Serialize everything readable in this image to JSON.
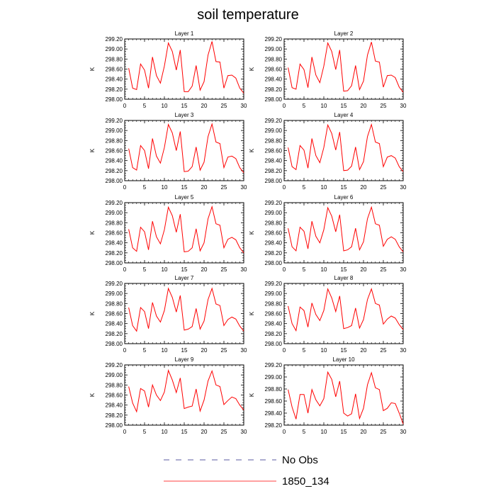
{
  "figure": {
    "title": "soil temperature",
    "legend": [
      {
        "label": "No Obs",
        "color": "#5a5aa0",
        "dash": true
      },
      {
        "label": "1850_134",
        "color": "#ff0000",
        "dash": false
      }
    ]
  },
  "chart_data": [
    {
      "type": "line",
      "title": "Layer 1",
      "xlabel": "",
      "ylabel": "K",
      "xlim": [
        0,
        30
      ],
      "ylim": [
        298.0,
        299.2
      ],
      "x_ticks": [
        0,
        5,
        10,
        15,
        20,
        25,
        30
      ],
      "y_ticks": [
        "299.20",
        "299.00",
        "298.80",
        "298.60",
        "298.40",
        "298.20",
        "298.00"
      ],
      "series": [
        {
          "name": "1850_134",
          "color": "#ff0000",
          "x": [
            1,
            2,
            3,
            4,
            5,
            6,
            7,
            8,
            9,
            10,
            11,
            12,
            13,
            14,
            15,
            16,
            17,
            18,
            19,
            20,
            21,
            22,
            23,
            24,
            25,
            26,
            27,
            28,
            29,
            30
          ],
          "values": [
            298.62,
            298.22,
            298.19,
            298.7,
            298.58,
            298.22,
            298.84,
            298.47,
            298.32,
            298.66,
            299.12,
            298.95,
            298.58,
            298.98,
            298.15,
            298.15,
            298.26,
            298.67,
            298.18,
            298.35,
            298.88,
            299.15,
            298.75,
            298.74,
            298.22,
            298.47,
            298.48,
            298.42,
            298.22,
            298.12
          ]
        }
      ]
    },
    {
      "type": "line",
      "title": "Layer 2",
      "xlabel": "",
      "ylabel": "K",
      "xlim": [
        0,
        30
      ],
      "ylim": [
        298.0,
        299.2
      ],
      "x_ticks": [
        0,
        5,
        10,
        15,
        20,
        25,
        30
      ],
      "y_ticks": [
        "299.20",
        "299.00",
        "298.80",
        "298.60",
        "298.40",
        "298.20",
        "298.00"
      ],
      "series": [
        {
          "name": "1850_134",
          "color": "#ff0000",
          "x": [
            1,
            2,
            3,
            4,
            5,
            6,
            7,
            8,
            9,
            10,
            11,
            12,
            13,
            14,
            15,
            16,
            17,
            18,
            19,
            20,
            21,
            22,
            23,
            24,
            25,
            26,
            27,
            28,
            29,
            30
          ],
          "values": [
            298.63,
            298.23,
            298.2,
            298.7,
            298.59,
            298.23,
            298.84,
            298.48,
            298.33,
            298.66,
            299.12,
            298.95,
            298.59,
            298.98,
            298.16,
            298.17,
            298.27,
            298.67,
            298.19,
            298.36,
            298.88,
            299.14,
            298.76,
            298.74,
            298.24,
            298.47,
            298.48,
            298.43,
            298.24,
            298.14
          ]
        }
      ]
    },
    {
      "type": "line",
      "title": "Layer 3",
      "xlabel": "",
      "ylabel": "K",
      "xlim": [
        0,
        30
      ],
      "ylim": [
        298.0,
        299.2
      ],
      "x_ticks": [
        0,
        5,
        10,
        15,
        20,
        25,
        30
      ],
      "y_ticks": [
        "299.20",
        "299.00",
        "298.80",
        "298.60",
        "298.40",
        "298.20",
        "298.00"
      ],
      "series": [
        {
          "name": "1850_134",
          "color": "#ff0000",
          "x": [
            1,
            2,
            3,
            4,
            5,
            6,
            7,
            8,
            9,
            10,
            11,
            12,
            13,
            14,
            15,
            16,
            17,
            18,
            19,
            20,
            21,
            22,
            23,
            24,
            25,
            26,
            27,
            28,
            29,
            30
          ],
          "values": [
            298.64,
            298.26,
            298.21,
            298.7,
            298.6,
            298.24,
            298.84,
            298.49,
            298.35,
            298.66,
            299.12,
            298.95,
            298.6,
            298.98,
            298.18,
            298.19,
            298.28,
            298.67,
            298.21,
            298.37,
            298.88,
            299.13,
            298.77,
            298.74,
            298.26,
            298.47,
            298.49,
            298.44,
            298.26,
            298.16
          ]
        }
      ]
    },
    {
      "type": "line",
      "title": "Layer 4",
      "xlabel": "",
      "ylabel": "K",
      "xlim": [
        0,
        30
      ],
      "ylim": [
        298.0,
        299.2
      ],
      "x_ticks": [
        0,
        5,
        10,
        15,
        20,
        25,
        30
      ],
      "y_ticks": [
        "299.20",
        "299.00",
        "298.80",
        "298.60",
        "298.40",
        "298.20",
        "298.00"
      ],
      "series": [
        {
          "name": "1850_134",
          "color": "#ff0000",
          "x": [
            1,
            2,
            3,
            4,
            5,
            6,
            7,
            8,
            9,
            10,
            11,
            12,
            13,
            14,
            15,
            16,
            17,
            18,
            19,
            20,
            21,
            22,
            23,
            24,
            25,
            26,
            27,
            28,
            29,
            30
          ],
          "values": [
            298.66,
            298.28,
            298.22,
            298.7,
            298.61,
            298.25,
            298.84,
            298.5,
            298.36,
            298.66,
            299.11,
            298.94,
            298.61,
            298.97,
            298.2,
            298.21,
            298.29,
            298.67,
            298.22,
            298.38,
            298.88,
            299.12,
            298.77,
            298.74,
            298.28,
            298.47,
            298.5,
            298.45,
            298.28,
            298.18
          ]
        }
      ]
    },
    {
      "type": "line",
      "title": "Layer 5",
      "xlabel": "",
      "ylabel": "K",
      "xlim": [
        0,
        30
      ],
      "ylim": [
        298.0,
        299.2
      ],
      "x_ticks": [
        0,
        5,
        10,
        15,
        20,
        25,
        30
      ],
      "y_ticks": [
        "299.20",
        "299.00",
        "298.80",
        "298.60",
        "298.40",
        "298.20",
        "298.00"
      ],
      "series": [
        {
          "name": "1850_134",
          "color": "#ff0000",
          "x": [
            1,
            2,
            3,
            4,
            5,
            6,
            7,
            8,
            9,
            10,
            11,
            12,
            13,
            14,
            15,
            16,
            17,
            18,
            19,
            20,
            21,
            22,
            23,
            24,
            25,
            26,
            27,
            28,
            29,
            30
          ],
          "values": [
            298.67,
            298.3,
            298.23,
            298.71,
            298.62,
            298.26,
            298.83,
            298.52,
            298.38,
            298.66,
            299.11,
            298.94,
            298.61,
            298.97,
            298.22,
            298.23,
            298.3,
            298.68,
            298.24,
            298.4,
            298.88,
            299.12,
            298.78,
            298.75,
            298.3,
            298.47,
            298.51,
            298.46,
            298.3,
            298.2
          ]
        }
      ]
    },
    {
      "type": "line",
      "title": "Layer 6",
      "xlabel": "",
      "ylabel": "K",
      "xlim": [
        0,
        30
      ],
      "ylim": [
        298.0,
        299.2
      ],
      "x_ticks": [
        0,
        5,
        10,
        15,
        20,
        25,
        30
      ],
      "y_ticks": [
        "299.20",
        "299.00",
        "298.80",
        "298.60",
        "298.40",
        "298.20",
        "298.00"
      ],
      "series": [
        {
          "name": "1850_134",
          "color": "#ff0000",
          "x": [
            1,
            2,
            3,
            4,
            5,
            6,
            7,
            8,
            9,
            10,
            11,
            12,
            13,
            14,
            15,
            16,
            17,
            18,
            19,
            20,
            21,
            22,
            23,
            24,
            25,
            26,
            27,
            28,
            29,
            30
          ],
          "values": [
            298.69,
            298.32,
            298.24,
            298.71,
            298.63,
            298.28,
            298.83,
            298.53,
            298.4,
            298.66,
            299.1,
            298.93,
            298.62,
            298.96,
            298.24,
            298.26,
            298.32,
            298.69,
            298.26,
            298.42,
            298.88,
            299.11,
            298.78,
            298.75,
            298.33,
            298.47,
            298.52,
            298.47,
            298.32,
            298.22
          ]
        }
      ]
    },
    {
      "type": "line",
      "title": "Layer 7",
      "xlabel": "",
      "ylabel": "K",
      "xlim": [
        0,
        30
      ],
      "ylim": [
        298.0,
        299.2
      ],
      "x_ticks": [
        0,
        5,
        10,
        15,
        20,
        25,
        30
      ],
      "y_ticks": [
        "299.20",
        "299.00",
        "298.80",
        "298.60",
        "298.40",
        "298.20",
        "298.00"
      ],
      "series": [
        {
          "name": "1850_134",
          "color": "#ff0000",
          "x": [
            1,
            2,
            3,
            4,
            5,
            6,
            7,
            8,
            9,
            10,
            11,
            12,
            13,
            14,
            15,
            16,
            17,
            18,
            19,
            20,
            21,
            22,
            23,
            24,
            25,
            26,
            27,
            28,
            29,
            30
          ],
          "values": [
            298.72,
            298.36,
            298.25,
            298.72,
            298.64,
            298.3,
            298.82,
            298.55,
            298.43,
            298.66,
            299.1,
            298.92,
            298.63,
            298.96,
            298.27,
            298.29,
            298.34,
            298.7,
            298.29,
            298.45,
            298.88,
            299.1,
            298.79,
            298.76,
            298.36,
            298.48,
            298.53,
            298.49,
            298.35,
            298.25
          ]
        }
      ]
    },
    {
      "type": "line",
      "title": "Layer 8",
      "xlabel": "",
      "ylabel": "K",
      "xlim": [
        0,
        30
      ],
      "ylim": [
        298.0,
        299.2
      ],
      "x_ticks": [
        0,
        5,
        10,
        15,
        20,
        25,
        30
      ],
      "y_ticks": [
        "299.20",
        "299.00",
        "298.80",
        "298.60",
        "298.40",
        "298.20",
        "298.00"
      ],
      "series": [
        {
          "name": "1850_134",
          "color": "#ff0000",
          "x": [
            1,
            2,
            3,
            4,
            5,
            6,
            7,
            8,
            9,
            10,
            11,
            12,
            13,
            14,
            15,
            16,
            17,
            18,
            19,
            20,
            21,
            22,
            23,
            24,
            25,
            26,
            27,
            28,
            29,
            30
          ],
          "values": [
            298.75,
            298.4,
            298.26,
            298.73,
            298.66,
            298.33,
            298.81,
            298.58,
            298.46,
            298.66,
            299.09,
            298.91,
            298.64,
            298.95,
            298.3,
            298.32,
            298.36,
            298.71,
            298.31,
            298.48,
            298.88,
            299.09,
            298.8,
            298.77,
            298.39,
            298.49,
            298.55,
            298.51,
            298.38,
            298.28
          ]
        }
      ]
    },
    {
      "type": "line",
      "title": "Layer 9",
      "xlabel": "",
      "ylabel": "K",
      "xlim": [
        0,
        30
      ],
      "ylim": [
        298.0,
        299.2
      ],
      "x_ticks": [
        0,
        5,
        10,
        15,
        20,
        25,
        30
      ],
      "y_ticks": [
        "299.20",
        "299.00",
        "298.80",
        "298.60",
        "298.40",
        "298.20",
        "298.00"
      ],
      "series": [
        {
          "name": "1850_134",
          "color": "#ff0000",
          "x": [
            1,
            2,
            3,
            4,
            5,
            6,
            7,
            8,
            9,
            10,
            11,
            12,
            13,
            14,
            15,
            16,
            17,
            18,
            19,
            20,
            21,
            22,
            23,
            24,
            25,
            26,
            27,
            28,
            29,
            30
          ],
          "values": [
            298.77,
            298.44,
            298.27,
            298.73,
            298.68,
            298.36,
            298.8,
            298.6,
            298.49,
            298.66,
            299.09,
            298.9,
            298.65,
            298.94,
            298.33,
            298.36,
            298.38,
            298.72,
            298.28,
            298.5,
            298.88,
            299.08,
            298.8,
            298.77,
            298.41,
            298.49,
            298.56,
            298.53,
            298.4,
            298.3
          ]
        }
      ]
    },
    {
      "type": "line",
      "title": "Layer 10",
      "xlabel": "",
      "ylabel": "K",
      "xlim": [
        0,
        30
      ],
      "ylim": [
        298.2,
        299.2
      ],
      "x_ticks": [
        0,
        5,
        10,
        15,
        20,
        25,
        30
      ],
      "y_ticks": [
        "299.20",
        "299.00",
        "298.80",
        "298.60",
        "298.40",
        "298.20"
      ],
      "series": [
        {
          "name": "1850_134",
          "color": "#ff0000",
          "x": [
            1,
            2,
            3,
            4,
            5,
            6,
            7,
            8,
            9,
            10,
            11,
            12,
            13,
            14,
            15,
            16,
            17,
            18,
            19,
            20,
            21,
            22,
            23,
            24,
            25,
            26,
            27,
            28,
            29,
            30
          ],
          "values": [
            298.79,
            298.5,
            298.3,
            298.71,
            298.71,
            298.4,
            298.79,
            298.62,
            298.52,
            298.64,
            299.08,
            298.96,
            298.67,
            298.93,
            298.4,
            298.35,
            298.39,
            298.72,
            298.31,
            298.48,
            298.87,
            299.07,
            298.82,
            298.79,
            298.44,
            298.48,
            298.57,
            298.56,
            298.4,
            298.22
          ]
        }
      ]
    }
  ]
}
